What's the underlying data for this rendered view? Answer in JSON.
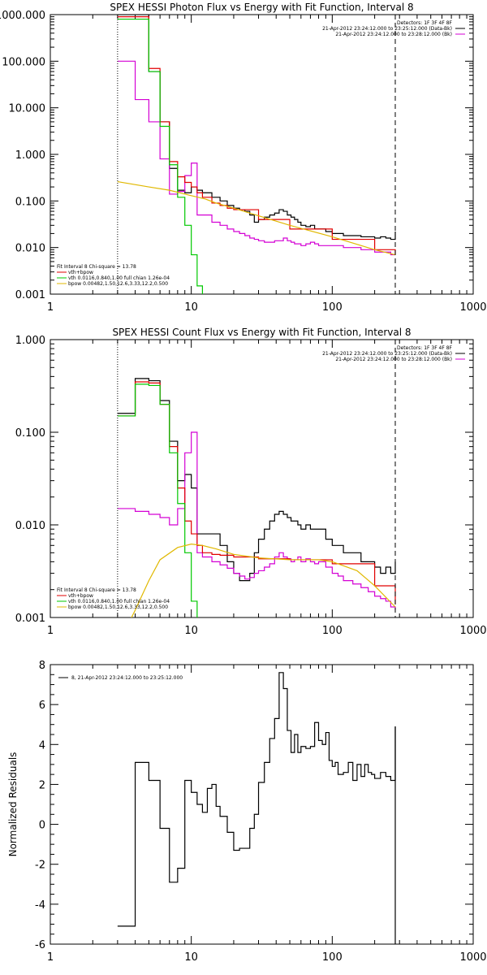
{
  "colors": {
    "data": "#000000",
    "background": "#d400d4",
    "total_fit": "#e00000",
    "vth": "#00c800",
    "bpow": "#e0b800"
  },
  "chart_data": [
    {
      "type": "line",
      "title": "SPEX HESSI Photon Flux vs Energy with Fit Function, Interval 8",
      "xscale": "log",
      "yscale": "log",
      "xlim": [
        1,
        1000
      ],
      "ylim": [
        0.001,
        1000
      ],
      "x_ticks": [
        "1",
        "10",
        "100",
        "1000"
      ],
      "y_ticks": [
        "0.001",
        "0.010",
        "0.100",
        "1.000",
        "10.000",
        "100.000",
        "1000.000"
      ],
      "header_lines": [
        "Detectors: 1F 3F 4F 8F",
        "21-Apr-2012 23:24:12.000 to 23:25:12.000 (Data-Bk)",
        "21-Apr-2012 23:24:12.000 to 23:28:12.000 (Bk)"
      ],
      "legend_lines": [
        "Fit Interval 8   Chi-square = 13.78",
        "vth+bpow",
        "vth 0.0116,0.840,1.00   full chian 1.26e-04",
        "bpow 0.00482,1.50,12.6,3.33,12.2,0.500"
      ],
      "energy_edges": [
        3,
        4,
        5,
        6,
        7,
        8,
        9,
        10,
        11,
        12,
        13,
        14,
        15,
        16,
        18,
        20,
        22,
        24,
        26,
        28,
        30,
        33,
        36,
        39,
        42,
        45,
        48,
        51,
        54,
        57,
        60,
        63,
        66,
        69,
        72,
        75,
        78,
        81,
        84,
        87,
        90,
        93,
        96,
        99,
        102,
        105,
        108,
        111,
        114,
        117,
        120,
        123,
        126,
        129,
        132,
        135,
        138,
        141,
        144,
        147,
        150,
        160,
        170,
        180,
        190,
        200,
        210,
        220,
        230,
        240,
        250,
        260,
        270,
        280
      ],
      "series": [
        {
          "name": "Data-Bk",
          "color": "#000000",
          "step": true,
          "x": [
            3,
            4,
            5,
            6,
            7,
            8,
            9,
            10,
            11,
            12,
            14,
            16,
            18,
            20,
            22,
            24,
            26,
            28,
            30,
            33,
            36,
            39,
            42,
            45,
            48,
            51,
            54,
            57,
            60,
            65,
            70,
            75,
            80,
            90,
            100,
            110,
            120,
            140,
            160,
            180,
            200,
            220,
            240,
            260,
            280
          ],
          "y": [
            1000,
            1000,
            60,
            5,
            0.5,
            0.17,
            0.15,
            0.2,
            0.17,
            0.15,
            0.12,
            0.1,
            0.08,
            0.07,
            0.065,
            0.06,
            0.05,
            0.035,
            0.04,
            0.045,
            0.05,
            0.055,
            0.065,
            0.06,
            0.05,
            0.045,
            0.04,
            0.035,
            0.03,
            0.028,
            0.03,
            0.025,
            0.025,
            0.022,
            0.02,
            0.02,
            0.018,
            0.018,
            0.017,
            0.017,
            0.016,
            0.017,
            0.016,
            0.015,
            0.022
          ]
        },
        {
          "name": "Background",
          "color": "#d400d4",
          "step": true,
          "x": [
            3,
            4,
            5,
            6,
            7,
            8,
            9,
            10,
            11,
            12,
            14,
            16,
            18,
            20,
            22,
            24,
            26,
            28,
            30,
            33,
            36,
            39,
            42,
            45,
            48,
            51,
            54,
            57,
            60,
            65,
            70,
            75,
            80,
            90,
            100,
            110,
            120,
            140,
            160,
            180,
            200,
            220,
            240,
            260,
            280
          ],
          "y": [
            100,
            15,
            5,
            0.8,
            0.14,
            0.16,
            0.35,
            0.65,
            0.05,
            0.05,
            0.035,
            0.03,
            0.025,
            0.022,
            0.02,
            0.018,
            0.016,
            0.015,
            0.014,
            0.013,
            0.013,
            0.014,
            0.014,
            0.016,
            0.014,
            0.013,
            0.012,
            0.012,
            0.011,
            0.012,
            0.013,
            0.012,
            0.011,
            0.011,
            0.011,
            0.011,
            0.01,
            0.01,
            0.009,
            0.009,
            0.008,
            0.008,
            0.008,
            0.007,
            0.007
          ]
        },
        {
          "name": "vth+bpow",
          "color": "#e00000",
          "step": true,
          "x": [
            3,
            4,
            5,
            6,
            7,
            8,
            9,
            10,
            11,
            12,
            14,
            16,
            18,
            20,
            30,
            50,
            100,
            200,
            280
          ],
          "y": [
            900,
            900,
            70,
            5,
            0.7,
            0.33,
            0.25,
            0.2,
            0.15,
            0.12,
            0.09,
            0.08,
            0.07,
            0.065,
            0.04,
            0.025,
            0.015,
            0.009,
            0.007
          ]
        },
        {
          "name": "vth",
          "color": "#00c800",
          "step": true,
          "x": [
            3,
            4,
            5,
            6,
            7,
            8,
            9,
            10,
            11,
            12
          ],
          "y": [
            800,
            800,
            60,
            4,
            0.6,
            0.12,
            0.03,
            0.007,
            0.0015,
            0.0005
          ]
        },
        {
          "name": "bpow",
          "color": "#e0b800",
          "step": false,
          "x": [
            3,
            5,
            7,
            10,
            12.6,
            15,
            20,
            30,
            50,
            100,
            200,
            280
          ],
          "y": [
            0.26,
            0.2,
            0.17,
            0.13,
            0.11,
            0.09,
            0.07,
            0.048,
            0.03,
            0.017,
            0.009,
            0.007
          ]
        }
      ],
      "dashed_vertical_x": 280,
      "dotted_vertical_x": 3
    },
    {
      "type": "line",
      "title": "SPEX HESSI Count Flux vs Energy with Fit Function, Interval 8",
      "xscale": "log",
      "yscale": "log",
      "xlim": [
        1,
        1000
      ],
      "ylim": [
        0.001,
        1
      ],
      "x_ticks": [
        "1",
        "10",
        "100",
        "1000"
      ],
      "y_ticks": [
        "0.001",
        "0.010",
        "0.100",
        "1.000"
      ],
      "header_lines": [
        "Detectors: 1F 3F 4F 8F",
        "21-Apr-2012 23:24:12.000 to 23:25:12.000 (Data-Bk)",
        "21-Apr-2012 23:24:12.000 to 23:28:12.000 (Bk)"
      ],
      "legend_lines": [
        "Fit Interval 8   Chi-square = 13.78",
        "vth+bpow",
        "vth 0.0116,0.840,1.00   full chian 1.26e-04",
        "bpow 0.00482,1.50,12.6,3.33,12.2,0.500"
      ],
      "series": [
        {
          "name": "Data-Bk",
          "color": "#000000",
          "step": true,
          "x": [
            3,
            4,
            5,
            6,
            7,
            8,
            9,
            10,
            11,
            12,
            14,
            16,
            18,
            20,
            22,
            24,
            26,
            28,
            30,
            33,
            36,
            39,
            42,
            45,
            48,
            51,
            54,
            57,
            60,
            65,
            70,
            75,
            80,
            90,
            100,
            110,
            120,
            140,
            160,
            180,
            200,
            220,
            240,
            260,
            280
          ],
          "y": [
            0.16,
            0.38,
            0.36,
            0.22,
            0.08,
            0.03,
            0.035,
            0.025,
            0.008,
            0.008,
            0.008,
            0.006,
            0.004,
            0.003,
            0.0025,
            0.0025,
            0.003,
            0.005,
            0.007,
            0.009,
            0.011,
            0.013,
            0.014,
            0.013,
            0.012,
            0.011,
            0.011,
            0.01,
            0.009,
            0.01,
            0.009,
            0.009,
            0.009,
            0.007,
            0.006,
            0.006,
            0.005,
            0.005,
            0.004,
            0.004,
            0.0035,
            0.003,
            0.0035,
            0.003,
            0.004
          ]
        },
        {
          "name": "Background",
          "color": "#d400d4",
          "step": true,
          "x": [
            3,
            4,
            5,
            6,
            7,
            8,
            9,
            10,
            11,
            12,
            14,
            16,
            18,
            20,
            22,
            24,
            26,
            28,
            30,
            33,
            36,
            39,
            42,
            45,
            48,
            51,
            54,
            57,
            60,
            65,
            70,
            75,
            80,
            90,
            100,
            110,
            120,
            140,
            160,
            180,
            200,
            220,
            240,
            260,
            280
          ],
          "y": [
            0.015,
            0.014,
            0.013,
            0.012,
            0.01,
            0.015,
            0.06,
            0.1,
            0.005,
            0.0045,
            0.004,
            0.0037,
            0.0034,
            0.003,
            0.0028,
            0.0026,
            0.0027,
            0.003,
            0.0032,
            0.0035,
            0.0038,
            0.0045,
            0.005,
            0.0045,
            0.0043,
            0.004,
            0.0042,
            0.0045,
            0.004,
            0.0043,
            0.004,
            0.0038,
            0.004,
            0.0035,
            0.003,
            0.0028,
            0.0025,
            0.0023,
            0.0021,
            0.0019,
            0.0017,
            0.0016,
            0.0015,
            0.0013,
            0.0012
          ]
        },
        {
          "name": "vth+bpow",
          "color": "#e00000",
          "step": true,
          "x": [
            3,
            4,
            5,
            6,
            7,
            8,
            9,
            10,
            11,
            12,
            14,
            16,
            20,
            30,
            50,
            100,
            200,
            280
          ],
          "y": [
            0.15,
            0.35,
            0.34,
            0.2,
            0.07,
            0.025,
            0.011,
            0.008,
            0.006,
            0.005,
            0.0048,
            0.0047,
            0.0045,
            0.0043,
            0.0042,
            0.0038,
            0.0022,
            0.0014
          ]
        },
        {
          "name": "vth",
          "color": "#00c800",
          "step": true,
          "x": [
            3,
            4,
            5,
            6,
            7,
            8,
            9,
            10,
            11
          ],
          "y": [
            0.15,
            0.33,
            0.32,
            0.2,
            0.06,
            0.017,
            0.005,
            0.0015,
            0.0004
          ]
        },
        {
          "name": "bpow",
          "color": "#e0b800",
          "step": false,
          "x": [
            3,
            4,
            5,
            6,
            8,
            10,
            12,
            15,
            20,
            30,
            50,
            80,
            100,
            150,
            200,
            280
          ],
          "y": [
            0.0004,
            0.0012,
            0.0025,
            0.0042,
            0.0057,
            0.0062,
            0.006,
            0.0055,
            0.0048,
            0.0044,
            0.0042,
            0.0042,
            0.004,
            0.0032,
            0.0022,
            0.0013
          ]
        }
      ],
      "dashed_vertical_x": 280,
      "dotted_vertical_x": 3
    },
    {
      "type": "line",
      "title": "",
      "xscale": "log",
      "yscale": "linear",
      "xlim": [
        1,
        1000
      ],
      "ylim": [
        -6,
        8
      ],
      "ylabel": "Normalized Residuals",
      "x_ticks": [
        "1",
        "10",
        "100",
        "1000"
      ],
      "y_ticks": [
        "-6",
        "-4",
        "-2",
        "0",
        "2",
        "4",
        "6",
        "8"
      ],
      "legend_lines": [
        "8, 21-Apr-2012 23:24:12.000 to 23:25:12.000"
      ],
      "series": [
        {
          "name": "8, 21-Apr-2012 23:24:12.000 to 23:25:12.000",
          "color": "#000000",
          "step": true,
          "x": [
            3,
            4,
            5,
            6,
            7,
            8,
            9,
            10,
            11,
            12,
            13,
            14,
            15,
            16,
            18,
            20,
            22,
            24,
            26,
            28,
            30,
            33,
            36,
            39,
            42,
            45,
            48,
            51,
            54,
            57,
            60,
            65,
            70,
            75,
            80,
            85,
            90,
            95,
            100,
            105,
            110,
            120,
            130,
            140,
            150,
            160,
            170,
            180,
            190,
            200,
            220,
            240,
            260,
            280
          ],
          "y": [
            -5.1,
            3.1,
            2.2,
            -0.2,
            -2.9,
            -2.2,
            2.2,
            1.6,
            1.0,
            0.6,
            1.8,
            2.0,
            0.9,
            0.4,
            -0.4,
            -1.3,
            -1.2,
            -1.2,
            -0.2,
            0.5,
            2.1,
            3.1,
            4.3,
            5.3,
            7.6,
            6.8,
            4.7,
            3.6,
            4.5,
            3.6,
            3.9,
            3.8,
            3.9,
            5.1,
            4.2,
            4.0,
            4.6,
            3.2,
            2.9,
            3.1,
            2.5,
            2.6,
            3.1,
            2.2,
            3.0,
            2.4,
            3.0,
            2.6,
            2.5,
            2.3,
            2.6,
            2.4,
            2.2,
            4.9
          ]
        }
      ],
      "drop_to_bottom_x": 280
    }
  ]
}
